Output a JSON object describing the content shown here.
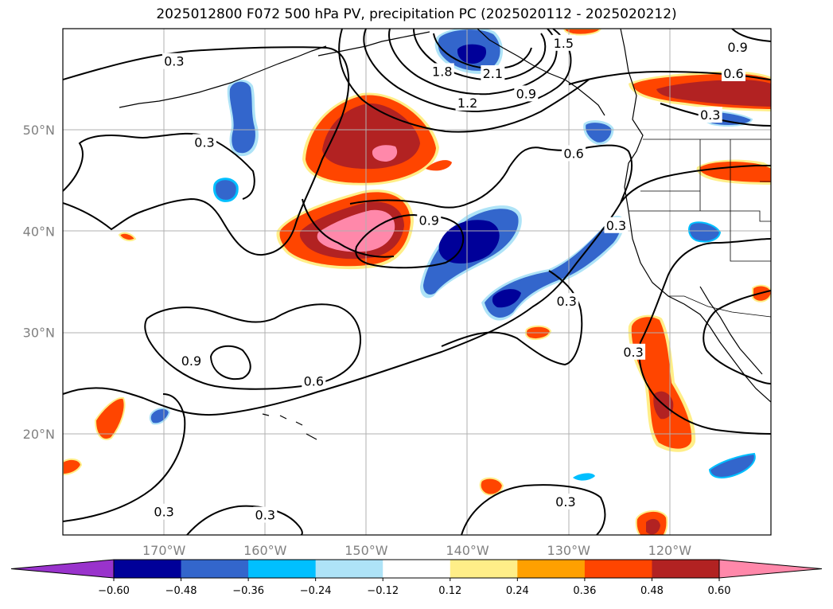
{
  "title": "2025012800 F072 500 hPa PV, precipitation PC (2025020112 - 2025020212)",
  "map": {
    "lon_range": [
      -180,
      -110
    ],
    "lat_range": [
      10,
      60
    ],
    "lat_ticks": [
      {
        "value": 20,
        "label": "20°N"
      },
      {
        "value": 30,
        "label": "30°N"
      },
      {
        "value": 40,
        "label": "40°N"
      },
      {
        "value": 50,
        "label": "50°N"
      }
    ],
    "lon_ticks": [
      {
        "value": -170,
        "label": "170°W"
      },
      {
        "value": -160,
        "label": "160°W"
      },
      {
        "value": -150,
        "label": "150°W"
      },
      {
        "value": -140,
        "label": "140°W"
      },
      {
        "value": -130,
        "label": "130°W"
      },
      {
        "value": -120,
        "label": "120°W"
      }
    ],
    "grid": true
  },
  "pv_contour_labels": [
    {
      "text": "0.3",
      "lon": -169,
      "lat": 56.8
    },
    {
      "text": "0.3",
      "lon": -166,
      "lat": 48.8
    },
    {
      "text": "1.8",
      "lon": -142.5,
      "lat": 55.8
    },
    {
      "text": "2.1",
      "lon": -137.5,
      "lat": 55.6
    },
    {
      "text": "1.5",
      "lon": -130.5,
      "lat": 58.6
    },
    {
      "text": "1.2",
      "lon": -140,
      "lat": 52.7
    },
    {
      "text": "0.9",
      "lon": -134.2,
      "lat": 53.6
    },
    {
      "text": "0.6",
      "lon": -129.5,
      "lat": 47.7
    },
    {
      "text": "0.9",
      "lon": -143.8,
      "lat": 41.1
    },
    {
      "text": "0.3",
      "lon": -125.3,
      "lat": 40.6
    },
    {
      "text": "0.6",
      "lon": -113.7,
      "lat": 55.6
    },
    {
      "text": "0.3",
      "lon": -116,
      "lat": 51.5
    },
    {
      "text": "0.9",
      "lon": -113.3,
      "lat": 58.2
    },
    {
      "text": "0.9",
      "lon": -167.3,
      "lat": 27.2
    },
    {
      "text": "0.6",
      "lon": -155.2,
      "lat": 25.2
    },
    {
      "text": "0.3",
      "lon": -130.2,
      "lat": 33.1
    },
    {
      "text": "0.3",
      "lon": -123.6,
      "lat": 28.1
    },
    {
      "text": "0.3",
      "lon": -170,
      "lat": 12.3
    },
    {
      "text": "0.3",
      "lon": -160,
      "lat": 12.0
    },
    {
      "text": "0.3",
      "lon": -130.3,
      "lat": 13.3
    }
  ],
  "colorbar": {
    "levels": [
      -0.6,
      -0.48,
      -0.36,
      -0.24,
      -0.12,
      0.12,
      0.24,
      0.36,
      0.48,
      0.6
    ],
    "tick_labels": [
      "−0.60",
      "−0.48",
      "−0.36",
      "−0.24",
      "−0.12",
      "0.12",
      "0.24",
      "0.36",
      "0.48",
      "0.60"
    ],
    "colors": [
      "#9933cc",
      "#000099",
      "#3366cc",
      "#00bfff",
      "#aee3f7",
      "#ffffff",
      "#ffee88",
      "#ffa000",
      "#ff4500",
      "#b22222",
      "#ff88aa"
    ],
    "extend": "both"
  }
}
